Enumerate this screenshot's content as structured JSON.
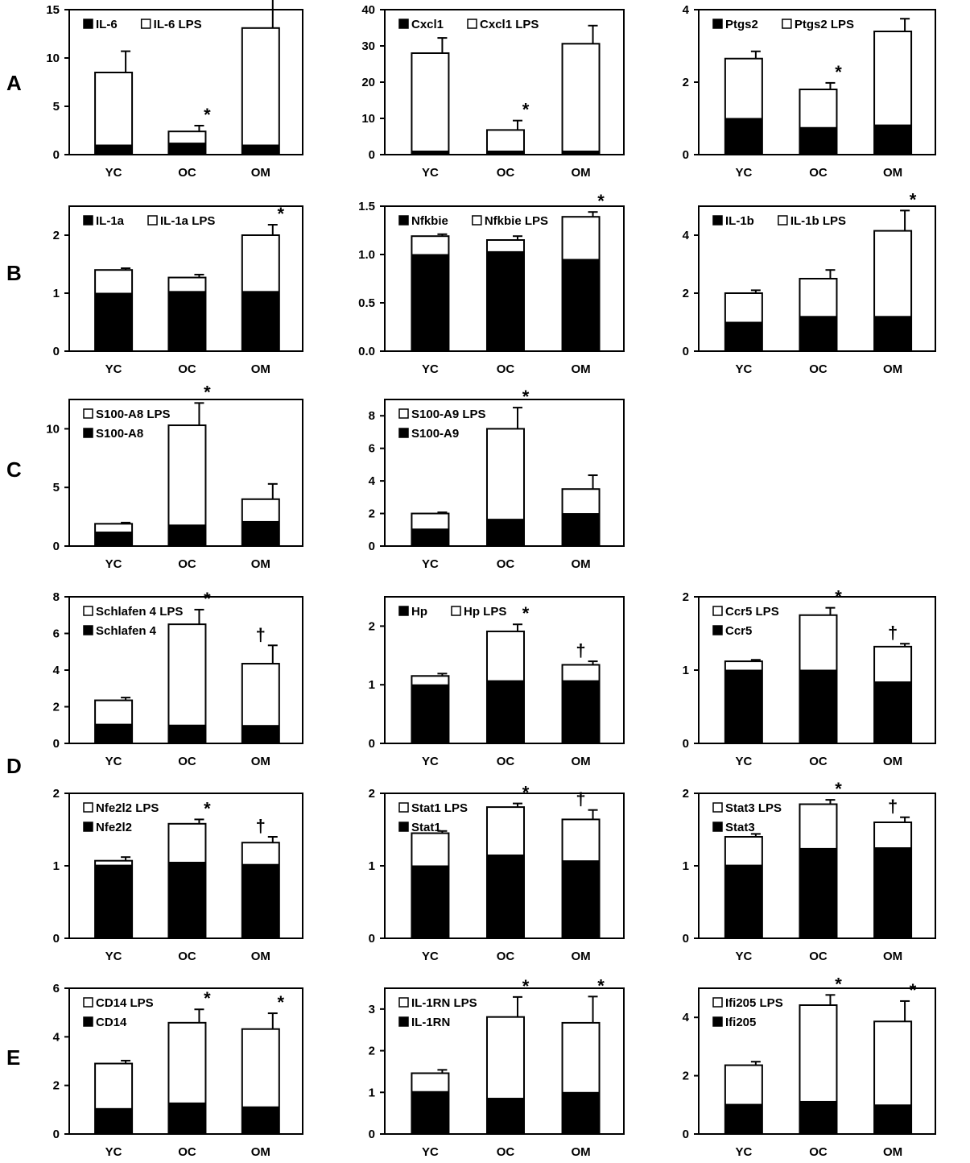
{
  "row_labels": [
    "A",
    "B",
    "C",
    "D",
    "E"
  ],
  "colors": {
    "basal": "#000000",
    "lps": "#ffffff",
    "axis": "#000000"
  },
  "chart_data": [
    {
      "type": "bar",
      "row": "A",
      "title": "",
      "categories": [
        "YC",
        "OC",
        "OM"
      ],
      "ylim": [
        0,
        15
      ],
      "yticks": [
        0,
        5,
        10,
        15
      ],
      "series": [
        {
          "name": "IL-6",
          "fill": "black",
          "values": [
            1.0,
            1.2,
            1.0
          ]
        },
        {
          "name": "IL-6 LPS",
          "fill": "white",
          "values": [
            8.5,
            2.4,
            13.1
          ]
        }
      ],
      "errors": [
        2.2,
        0.6,
        3.5
      ],
      "marks": [
        "",
        "*",
        ""
      ],
      "legend_layout": "inline"
    },
    {
      "type": "bar",
      "row": "A",
      "title": "",
      "categories": [
        "YC",
        "OC",
        "OM"
      ],
      "ylim": [
        0,
        40
      ],
      "yticks": [
        0,
        10,
        20,
        30,
        40
      ],
      "series": [
        {
          "name": "Cxcl1",
          "fill": "black",
          "values": [
            1.0,
            1.0,
            1.0
          ]
        },
        {
          "name": "Cxcl1 LPS",
          "fill": "white",
          "values": [
            28.0,
            6.8,
            30.6
          ]
        }
      ],
      "errors": [
        4.2,
        2.6,
        5.0
      ],
      "marks": [
        "",
        "*",
        ""
      ],
      "legend_layout": "inline"
    },
    {
      "type": "bar",
      "row": "A",
      "title": "",
      "categories": [
        "YC",
        "OC",
        "OM"
      ],
      "ylim": [
        0,
        4
      ],
      "yticks": [
        0,
        2,
        4
      ],
      "series": [
        {
          "name": "Ptgs2",
          "fill": "black",
          "values": [
            1.0,
            0.75,
            0.82
          ]
        },
        {
          "name": "Ptgs2 LPS",
          "fill": "white",
          "values": [
            2.65,
            1.8,
            3.4
          ]
        }
      ],
      "errors": [
        0.2,
        0.18,
        0.35
      ],
      "marks": [
        "",
        "*",
        ""
      ],
      "legend_layout": "inline"
    },
    {
      "type": "bar",
      "row": "B",
      "title": "",
      "categories": [
        "YC",
        "OC",
        "OM"
      ],
      "ylim": [
        0,
        2.5
      ],
      "yticks": [
        0,
        1,
        2
      ],
      "series": [
        {
          "name": "IL-1a",
          "fill": "black",
          "values": [
            1.0,
            1.03,
            1.03
          ]
        },
        {
          "name": "IL-1a LPS",
          "fill": "white",
          "values": [
            1.4,
            1.27,
            2.0
          ]
        }
      ],
      "errors": [
        0.03,
        0.05,
        0.18
      ],
      "marks": [
        "",
        "",
        "*"
      ],
      "legend_layout": "inline"
    },
    {
      "type": "bar",
      "row": "B",
      "title": "",
      "categories": [
        "YC",
        "OC",
        "OM"
      ],
      "ylim": [
        0,
        1.5
      ],
      "yticks": [
        "0.0",
        "0.5",
        "1.0",
        "1.5"
      ],
      "series": [
        {
          "name": "Nfkbie",
          "fill": "black",
          "values": [
            1.0,
            1.03,
            0.95
          ]
        },
        {
          "name": "Nfkbie LPS",
          "fill": "white",
          "values": [
            1.19,
            1.15,
            1.39
          ]
        }
      ],
      "errors": [
        0.02,
        0.04,
        0.05
      ],
      "marks": [
        "",
        "",
        "*"
      ],
      "legend_layout": "inline"
    },
    {
      "type": "bar",
      "row": "B",
      "title": "",
      "categories": [
        "YC",
        "OC",
        "OM"
      ],
      "ylim": [
        0,
        5
      ],
      "yticks": [
        0,
        2,
        4
      ],
      "series": [
        {
          "name": "IL-1b",
          "fill": "black",
          "values": [
            1.0,
            1.2,
            1.2
          ]
        },
        {
          "name": "IL-1b LPS",
          "fill": "white",
          "values": [
            2.0,
            2.5,
            4.15
          ]
        }
      ],
      "errors": [
        0.1,
        0.3,
        0.7
      ],
      "marks": [
        "",
        "",
        "*"
      ],
      "legend_layout": "inline"
    },
    {
      "type": "bar",
      "row": "C",
      "title": "",
      "categories": [
        "YC",
        "OC",
        "OM"
      ],
      "ylim": [
        0,
        12.5
      ],
      "yticks": [
        0,
        5,
        10
      ],
      "series": [
        {
          "name": "S100-A8",
          "fill": "black",
          "values": [
            1.2,
            1.8,
            2.1
          ]
        },
        {
          "name": "S100-A8 LPS",
          "fill": "white",
          "values": [
            1.9,
            10.3,
            4.0
          ]
        }
      ],
      "errors": [
        0.1,
        1.9,
        1.3
      ],
      "marks": [
        "",
        "*",
        ""
      ],
      "legend_layout": "stacked_lps_first"
    },
    {
      "type": "bar",
      "row": "C",
      "title": "",
      "categories": [
        "YC",
        "OC",
        "OM"
      ],
      "ylim": [
        0,
        9
      ],
      "yticks": [
        0,
        2,
        4,
        6,
        8
      ],
      "series": [
        {
          "name": "S100-A9",
          "fill": "black",
          "values": [
            1.05,
            1.65,
            2.0
          ]
        },
        {
          "name": "S100-A9 LPS",
          "fill": "white",
          "values": [
            2.0,
            7.2,
            3.5
          ]
        }
      ],
      "errors": [
        0.07,
        1.3,
        0.85
      ],
      "marks": [
        "",
        "*",
        ""
      ],
      "legend_layout": "stacked_lps_first"
    },
    {
      "type": "bar",
      "row": "D",
      "title": "",
      "categories": [
        "YC",
        "OC",
        "OM"
      ],
      "ylim": [
        0,
        8
      ],
      "yticks": [
        0,
        2,
        4,
        6,
        8
      ],
      "series": [
        {
          "name": "Schlafen 4",
          "fill": "black",
          "values": [
            1.05,
            1.0,
            0.98
          ]
        },
        {
          "name": "Schlafen 4 LPS",
          "fill": "white",
          "values": [
            2.35,
            6.5,
            4.35
          ]
        }
      ],
      "errors": [
        0.15,
        0.8,
        1.0
      ],
      "marks": [
        "",
        "*",
        "†"
      ],
      "legend_layout": "stacked_lps_first"
    },
    {
      "type": "bar",
      "row": "D",
      "title": "",
      "categories": [
        "YC",
        "OC",
        "OM"
      ],
      "ylim": [
        0,
        2.5
      ],
      "yticks": [
        0,
        1,
        2
      ],
      "series": [
        {
          "name": "Hp",
          "fill": "black",
          "values": [
            1.0,
            1.07,
            1.07
          ]
        },
        {
          "name": "Hp LPS",
          "fill": "white",
          "values": [
            1.15,
            1.91,
            1.34
          ]
        }
      ],
      "errors": [
        0.04,
        0.12,
        0.06
      ],
      "marks": [
        "",
        "*",
        "†"
      ],
      "legend_layout": "inline"
    },
    {
      "type": "bar",
      "row": "D",
      "title": "",
      "categories": [
        "YC",
        "OC",
        "OM"
      ],
      "ylim": [
        0,
        2
      ],
      "yticks": [
        0,
        1,
        2
      ],
      "series": [
        {
          "name": "Ccr5",
          "fill": "black",
          "values": [
            1.0,
            1.0,
            0.84
          ]
        },
        {
          "name": "Ccr5 LPS",
          "fill": "white",
          "values": [
            1.12,
            1.75,
            1.32
          ]
        }
      ],
      "errors": [
        0.02,
        0.1,
        0.04
      ],
      "marks": [
        "",
        "*",
        "†"
      ],
      "legend_layout": "stacked_lps_first"
    },
    {
      "type": "bar",
      "row": "D",
      "title": "",
      "categories": [
        "YC",
        "OC",
        "OM"
      ],
      "ylim": [
        0,
        2
      ],
      "yticks": [
        0,
        1,
        2
      ],
      "series": [
        {
          "name": "Nfe2l2",
          "fill": "black",
          "values": [
            1.01,
            1.05,
            1.02
          ]
        },
        {
          "name": "Nfe2l2 LPS",
          "fill": "white",
          "values": [
            1.07,
            1.58,
            1.32
          ]
        }
      ],
      "errors": [
        0.05,
        0.06,
        0.08
      ],
      "marks": [
        "",
        "*",
        "†"
      ],
      "legend_layout": "stacked_lps_first"
    },
    {
      "type": "bar",
      "row": "D",
      "title": "",
      "categories": [
        "YC",
        "OC",
        "OM"
      ],
      "ylim": [
        0,
        2
      ],
      "yticks": [
        0,
        1,
        2
      ],
      "series": [
        {
          "name": "Stat1",
          "fill": "black",
          "values": [
            1.0,
            1.15,
            1.07
          ]
        },
        {
          "name": "Stat1 LPS",
          "fill": "white",
          "values": [
            1.45,
            1.81,
            1.64
          ]
        }
      ],
      "errors": [
        0.03,
        0.05,
        0.13
      ],
      "marks": [
        "",
        "*",
        "†"
      ],
      "legend_layout": "stacked_lps_first"
    },
    {
      "type": "bar",
      "row": "D",
      "title": "",
      "categories": [
        "YC",
        "OC",
        "OM"
      ],
      "ylim": [
        0,
        2
      ],
      "yticks": [
        0,
        1,
        2
      ],
      "series": [
        {
          "name": "Stat3",
          "fill": "black",
          "values": [
            1.01,
            1.24,
            1.25
          ]
        },
        {
          "name": "Stat3 LPS",
          "fill": "white",
          "values": [
            1.4,
            1.85,
            1.6
          ]
        }
      ],
      "errors": [
        0.04,
        0.06,
        0.07
      ],
      "marks": [
        "",
        "*",
        "†"
      ],
      "legend_layout": "stacked_lps_first"
    },
    {
      "type": "bar",
      "row": "E",
      "title": "",
      "categories": [
        "YC",
        "OC",
        "OM"
      ],
      "ylim": [
        0,
        6
      ],
      "yticks": [
        0,
        2,
        4,
        6
      ],
      "series": [
        {
          "name": "CD14",
          "fill": "black",
          "values": [
            1.05,
            1.28,
            1.12
          ]
        },
        {
          "name": "CD14 LPS",
          "fill": "white",
          "values": [
            2.9,
            4.58,
            4.32
          ]
        }
      ],
      "errors": [
        0.12,
        0.55,
        0.65
      ],
      "marks": [
        "",
        "*",
        "*"
      ],
      "legend_layout": "stacked_lps_first"
    },
    {
      "type": "bar",
      "row": "E",
      "title": "",
      "categories": [
        "YC",
        "OC",
        "OM"
      ],
      "ylim": [
        0,
        3.5
      ],
      "yticks": [
        0,
        1,
        2,
        3
      ],
      "series": [
        {
          "name": "IL-1RN",
          "fill": "black",
          "values": [
            1.02,
            0.86,
            1.0
          ]
        },
        {
          "name": "IL-1RN LPS",
          "fill": "white",
          "values": [
            1.46,
            2.81,
            2.67
          ]
        }
      ],
      "errors": [
        0.08,
        0.48,
        0.63
      ],
      "marks": [
        "",
        "*",
        "*"
      ],
      "legend_layout": "stacked_lps_first"
    },
    {
      "type": "bar",
      "row": "E",
      "title": "",
      "categories": [
        "YC",
        "OC",
        "OM"
      ],
      "ylim": [
        0,
        5
      ],
      "yticks": [
        0,
        2,
        4
      ],
      "series": [
        {
          "name": "Ifi205",
          "fill": "black",
          "values": [
            1.02,
            1.12,
            1.0
          ]
        },
        {
          "name": "Ifi205 LPS",
          "fill": "white",
          "values": [
            2.36,
            4.42,
            3.86
          ]
        }
      ],
      "errors": [
        0.12,
        0.35,
        0.7
      ],
      "marks": [
        "",
        "*",
        "*"
      ],
      "legend_layout": "stacked_lps_first"
    }
  ]
}
